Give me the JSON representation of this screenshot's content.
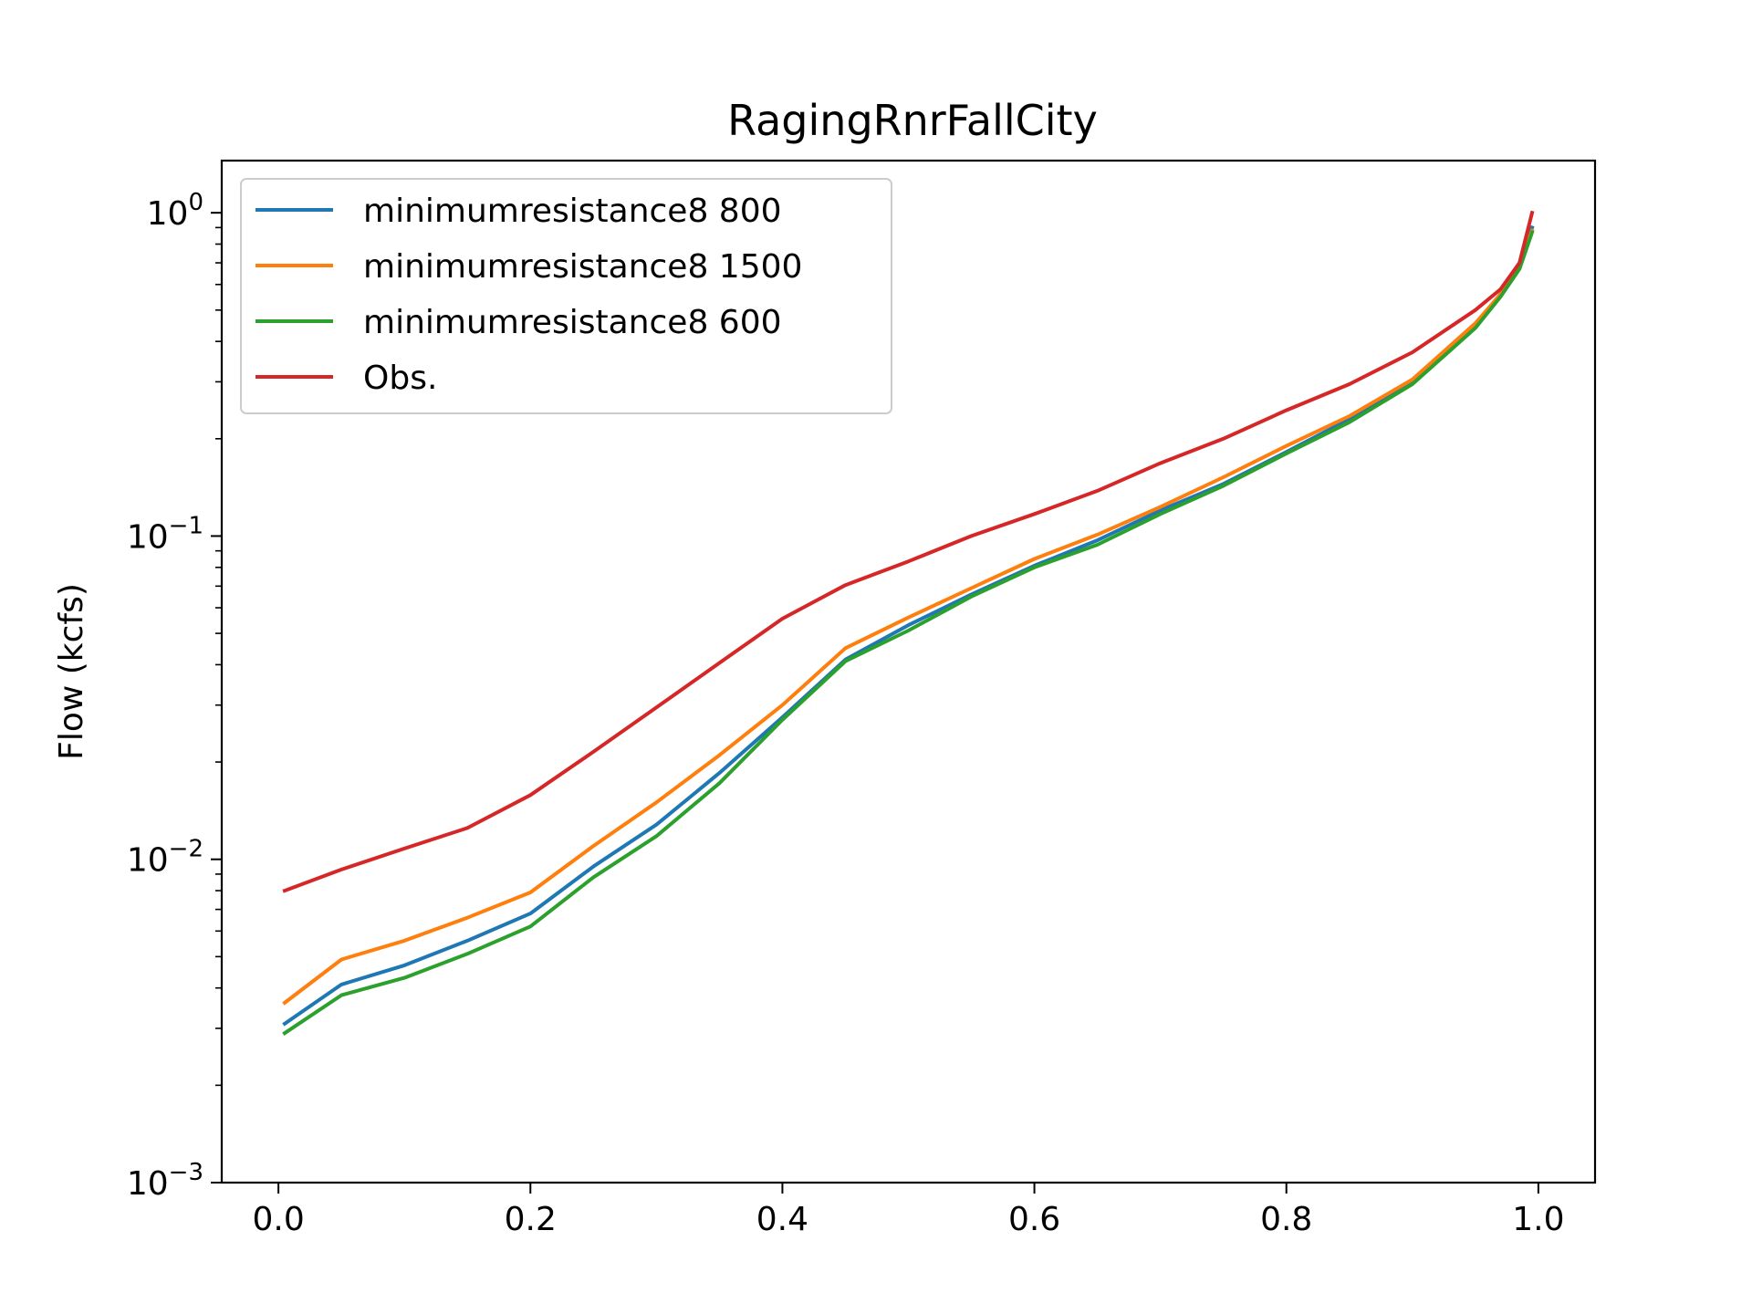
{
  "chart_data": {
    "type": "line",
    "title": "RagingRnrFallCity",
    "xlabel": "",
    "ylabel": "Flow (kcfs)",
    "yscale": "log",
    "xlim": [
      -0.045,
      1.045
    ],
    "ylim": [
      0.001,
      1.45
    ],
    "x_ticks": [
      {
        "value": 0.0,
        "label": "0.0"
      },
      {
        "value": 0.2,
        "label": "0.2"
      },
      {
        "value": 0.4,
        "label": "0.4"
      },
      {
        "value": 0.6,
        "label": "0.6"
      },
      {
        "value": 0.8,
        "label": "0.8"
      },
      {
        "value": 1.0,
        "label": "1.0"
      }
    ],
    "y_ticks": [
      {
        "value": 0.001,
        "base": "10",
        "exp": "−3"
      },
      {
        "value": 0.01,
        "base": "10",
        "exp": "−2"
      },
      {
        "value": 0.1,
        "base": "10",
        "exp": "−1"
      },
      {
        "value": 1,
        "base": "10",
        "exp": "0"
      }
    ],
    "grid": false,
    "legend_position": "top-left",
    "series": [
      {
        "name": "minimumresistance8 800",
        "color": "#1f77b4",
        "x": [
          0.005,
          0.05,
          0.1,
          0.15,
          0.2,
          0.25,
          0.3,
          0.35,
          0.4,
          0.45,
          0.5,
          0.55,
          0.6,
          0.65,
          0.7,
          0.75,
          0.8,
          0.85,
          0.9,
          0.95,
          0.97,
          0.985,
          0.995
        ],
        "y": [
          0.0031,
          0.0041,
          0.0047,
          0.0056,
          0.0068,
          0.0095,
          0.0128,
          0.0185,
          0.0275,
          0.0415,
          0.053,
          0.066,
          0.081,
          0.097,
          0.12,
          0.145,
          0.182,
          0.23,
          0.3,
          0.45,
          0.56,
          0.68,
          0.9
        ]
      },
      {
        "name": "minimumresistance8 1500",
        "color": "#ff7f0e",
        "x": [
          0.005,
          0.05,
          0.1,
          0.15,
          0.2,
          0.25,
          0.3,
          0.35,
          0.4,
          0.45,
          0.5,
          0.55,
          0.6,
          0.65,
          0.7,
          0.75,
          0.8,
          0.85,
          0.9,
          0.95,
          0.97,
          0.985,
          0.995
        ],
        "y": [
          0.0036,
          0.0049,
          0.0056,
          0.0066,
          0.0079,
          0.011,
          0.015,
          0.021,
          0.03,
          0.045,
          0.056,
          0.069,
          0.085,
          0.101,
          0.123,
          0.152,
          0.19,
          0.235,
          0.305,
          0.455,
          0.56,
          0.7,
          0.88
        ]
      },
      {
        "name": "minimumresistance8 600",
        "color": "#2ca02c",
        "x": [
          0.005,
          0.05,
          0.1,
          0.15,
          0.2,
          0.25,
          0.3,
          0.35,
          0.4,
          0.45,
          0.5,
          0.55,
          0.6,
          0.65,
          0.7,
          0.75,
          0.8,
          0.85,
          0.9,
          0.95,
          0.97,
          0.985,
          0.995
        ],
        "y": [
          0.0029,
          0.0038,
          0.0043,
          0.0051,
          0.0062,
          0.0088,
          0.0118,
          0.0172,
          0.027,
          0.041,
          0.051,
          0.065,
          0.08,
          0.094,
          0.117,
          0.143,
          0.18,
          0.225,
          0.295,
          0.44,
          0.55,
          0.67,
          0.87
        ]
      },
      {
        "name": "Obs.",
        "color": "#d62728",
        "x": [
          0.005,
          0.05,
          0.1,
          0.15,
          0.2,
          0.25,
          0.3,
          0.35,
          0.4,
          0.45,
          0.5,
          0.55,
          0.6,
          0.65,
          0.7,
          0.75,
          0.8,
          0.85,
          0.9,
          0.95,
          0.97,
          0.985,
          0.995
        ],
        "y": [
          0.008,
          0.0093,
          0.0108,
          0.0125,
          0.0158,
          0.0215,
          0.0295,
          0.0405,
          0.0555,
          0.0705,
          0.0835,
          0.1,
          0.117,
          0.138,
          0.168,
          0.2,
          0.245,
          0.295,
          0.37,
          0.5,
          0.58,
          0.7,
          1.0
        ]
      }
    ]
  }
}
